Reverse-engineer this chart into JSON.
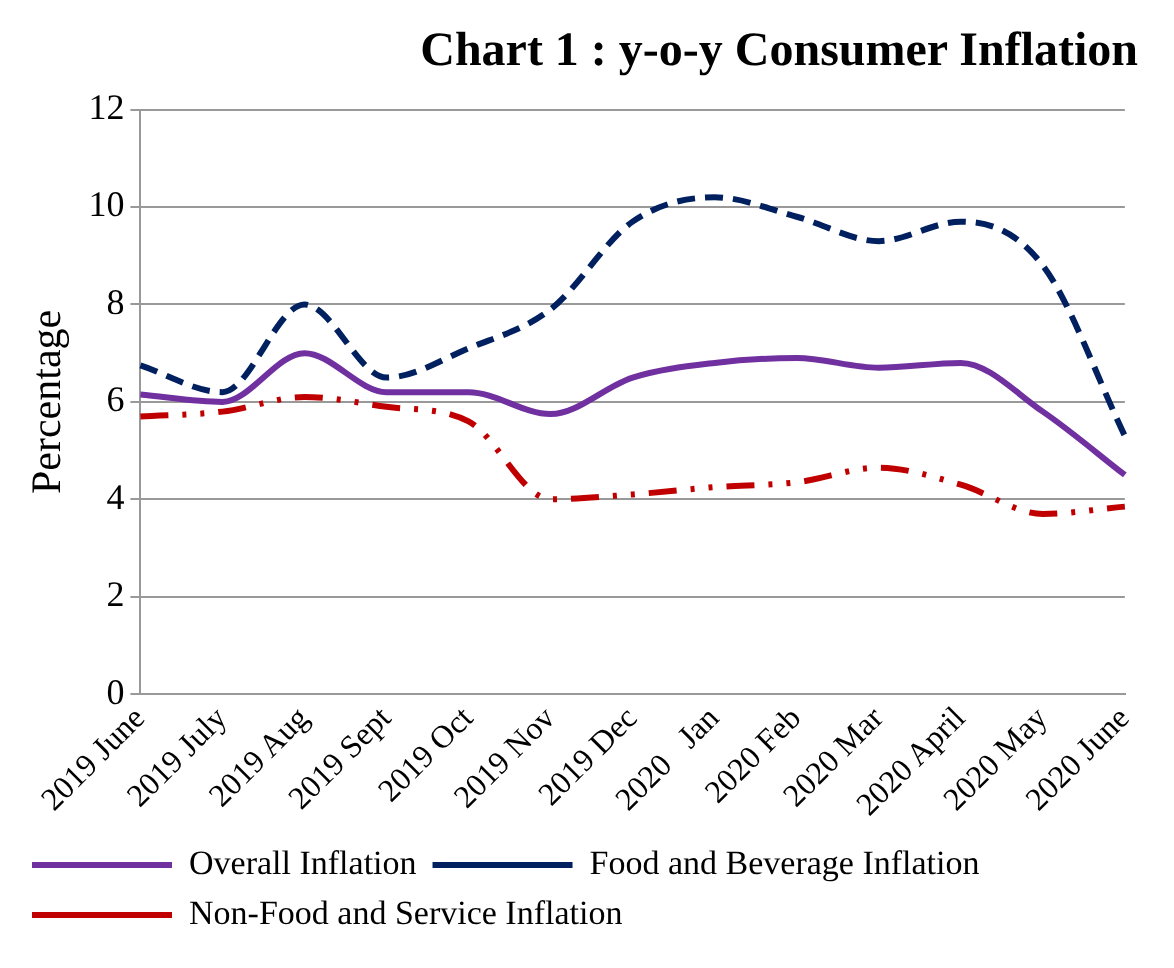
{
  "chart_data": {
    "type": "line",
    "title": "Chart 1 : y-o-y Consumer Inflation",
    "ylabel": "Percentage",
    "categories": [
      "2019 June",
      "2019 July",
      "2019 Aug",
      "2019 Sept",
      "2019 Oct",
      "2019 Nov",
      "2019 Dec",
      "2020   Jan",
      "2020 Feb",
      "2020 Mar",
      "2020 April",
      "2020 May",
      "2020 June"
    ],
    "series": [
      {
        "name": "Overall Inflation",
        "color": "#7030a0",
        "line_style": "solid",
        "values": [
          6.15,
          6.0,
          7.0,
          6.2,
          6.2,
          5.75,
          6.5,
          6.8,
          6.9,
          6.7,
          6.8,
          5.8,
          4.5
        ]
      },
      {
        "name": "Food and Beverage Inflation",
        "color": "#002060",
        "line_style": "dashed",
        "values": [
          6.75,
          6.2,
          8.0,
          6.5,
          7.1,
          7.9,
          9.7,
          10.2,
          9.8,
          9.3,
          9.7,
          8.8,
          5.3
        ]
      },
      {
        "name": "Non-Food and Service Inflation",
        "color": "#c00000",
        "line_style": "dotted",
        "values": [
          5.7,
          5.8,
          6.1,
          5.9,
          5.6,
          4.0,
          4.1,
          4.25,
          4.35,
          4.65,
          4.3,
          3.7,
          3.85
        ]
      }
    ],
    "ylim": [
      0,
      12
    ],
    "yticks": [
      0,
      2,
      4,
      6,
      8,
      10,
      12
    ],
    "grid": "y",
    "legend": "bottom",
    "marker": "none"
  }
}
